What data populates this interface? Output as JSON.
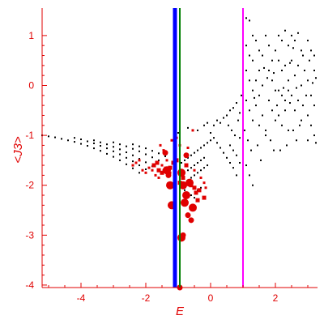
{
  "chart_data": {
    "type": "scatter",
    "title": "",
    "xlabel": "E",
    "ylabel": "<J3>",
    "xlim": [
      -5.2,
      3.3
    ],
    "ylim": [
      -4.05,
      1.55
    ],
    "grid": false,
    "x_ticks": [
      -4,
      -2,
      0,
      2
    ],
    "y_ticks": [
      1,
      0,
      -1,
      -2,
      -3,
      -4
    ],
    "colors": {
      "axes": "#e00000",
      "labels": "#e00000",
      "background_points": "#000000",
      "highlight_points": "#e00000",
      "vline_blue": "#0000ff",
      "vline_green": "#008000",
      "vline_magenta": "#ff00ff"
    },
    "vertical_lines": [
      {
        "x": -1.1,
        "color": "#0000ff",
        "style": "thick"
      },
      {
        "x": -0.95,
        "color": "#008000",
        "style": "thin"
      },
      {
        "x": 1.0,
        "color": "#ff00ff",
        "style": "medium"
      }
    ],
    "series": [
      {
        "color": "#000000",
        "marker": "dot",
        "points": [
          [
            -5.2,
            -1.0
          ],
          [
            -5.0,
            -1.02
          ],
          [
            -4.8,
            -1.04
          ],
          [
            -4.6,
            -1.07
          ],
          [
            -4.4,
            -1.1
          ],
          [
            -4.2,
            -1.13
          ],
          [
            -4.0,
            -1.17
          ],
          [
            -3.8,
            -1.21
          ],
          [
            -3.6,
            -1.26
          ],
          [
            -3.4,
            -1.31
          ],
          [
            -3.2,
            -1.37
          ],
          [
            -3.0,
            -1.43
          ],
          [
            -2.8,
            -1.5
          ],
          [
            -2.6,
            -1.58
          ],
          [
            -2.4,
            -1.66
          ],
          [
            -2.2,
            -1.75
          ],
          [
            -4.2,
            -1.05
          ],
          [
            -4.0,
            -1.08
          ],
          [
            -3.8,
            -1.12
          ],
          [
            -3.6,
            -1.16
          ],
          [
            -3.4,
            -1.21
          ],
          [
            -3.2,
            -1.26
          ],
          [
            -3.0,
            -1.32
          ],
          [
            -2.8,
            -1.38
          ],
          [
            -2.6,
            -1.45
          ],
          [
            -2.4,
            -1.52
          ],
          [
            -2.2,
            -1.6
          ],
          [
            -2.0,
            -1.68
          ],
          [
            -3.6,
            -1.1
          ],
          [
            -3.4,
            -1.14
          ],
          [
            -3.2,
            -1.18
          ],
          [
            -3.0,
            -1.23
          ],
          [
            -2.8,
            -1.28
          ],
          [
            -2.6,
            -1.34
          ],
          [
            -2.4,
            -1.4
          ],
          [
            -2.2,
            -1.47
          ],
          [
            -2.0,
            -1.54
          ],
          [
            -1.8,
            -1.62
          ],
          [
            -3.0,
            -1.14
          ],
          [
            -2.8,
            -1.18
          ],
          [
            -2.6,
            -1.22
          ],
          [
            -2.4,
            -1.27
          ],
          [
            -2.2,
            -1.32
          ],
          [
            -2.0,
            -1.38
          ],
          [
            -1.8,
            -1.44
          ],
          [
            -1.6,
            -1.5
          ],
          [
            -2.4,
            -1.18
          ],
          [
            -2.2,
            -1.22
          ],
          [
            -2.0,
            -1.26
          ],
          [
            -1.8,
            -1.31
          ],
          [
            -1.6,
            -1.36
          ],
          [
            -1.4,
            -1.42
          ],
          [
            -0.9,
            -2.0
          ],
          [
            -0.8,
            -1.95
          ],
          [
            -0.7,
            -1.9
          ],
          [
            -0.6,
            -1.85
          ],
          [
            -0.5,
            -1.8
          ],
          [
            -0.4,
            -1.75
          ],
          [
            -0.3,
            -1.7
          ],
          [
            -0.2,
            -1.65
          ],
          [
            -0.1,
            -1.6
          ],
          [
            -0.9,
            -1.8
          ],
          [
            -0.8,
            -1.75
          ],
          [
            -0.7,
            -1.7
          ],
          [
            -0.6,
            -1.65
          ],
          [
            -0.5,
            -1.6
          ],
          [
            -0.4,
            -1.55
          ],
          [
            -0.3,
            -1.5
          ],
          [
            -0.2,
            -1.45
          ],
          [
            -0.9,
            -1.55
          ],
          [
            -0.8,
            -1.5
          ],
          [
            -0.7,
            -1.45
          ],
          [
            -0.6,
            -1.4
          ],
          [
            -0.5,
            -1.35
          ],
          [
            -0.4,
            -1.3
          ],
          [
            -0.3,
            -1.25
          ],
          [
            -0.2,
            -1.2
          ],
          [
            -0.1,
            -1.15
          ],
          [
            0.0,
            -1.1
          ],
          [
            -0.8,
            -2.1
          ],
          [
            -0.7,
            -2.15
          ],
          [
            -0.6,
            -2.2
          ],
          [
            -0.5,
            -2.25
          ],
          [
            -0.4,
            -2.1
          ],
          [
            -0.3,
            -2.05
          ],
          [
            -1.1,
            -1.0
          ],
          [
            -1.0,
            -0.95
          ],
          [
            -0.7,
            -0.85
          ],
          [
            -0.4,
            -0.9
          ],
          [
            -0.2,
            -0.8
          ],
          [
            -0.1,
            -0.75
          ],
          [
            0.1,
            -0.8
          ],
          [
            0.2,
            -0.7
          ],
          [
            0.3,
            -0.75
          ],
          [
            0.4,
            -0.65
          ],
          [
            0.0,
            -0.95
          ],
          [
            0.1,
            -1.05
          ],
          [
            0.2,
            -1.15
          ],
          [
            0.3,
            -1.25
          ],
          [
            0.4,
            -1.35
          ],
          [
            0.5,
            -1.45
          ],
          [
            0.6,
            -1.55
          ],
          [
            0.7,
            -1.65
          ],
          [
            0.8,
            -1.8
          ],
          [
            0.6,
            -1.2
          ],
          [
            0.7,
            -1.3
          ],
          [
            0.8,
            -1.4
          ],
          [
            0.9,
            -1.55
          ],
          [
            0.5,
            -0.6
          ],
          [
            0.6,
            -0.5
          ],
          [
            0.7,
            -0.45
          ],
          [
            0.8,
            -0.35
          ],
          [
            0.9,
            -0.55
          ],
          [
            0.55,
            -0.8
          ],
          [
            0.65,
            -0.9
          ],
          [
            0.75,
            -1.0
          ],
          [
            0.85,
            -0.7
          ],
          [
            0.95,
            -0.2
          ],
          [
            0.9,
            -1.05
          ],
          [
            1.0,
            1.2
          ],
          [
            1.1,
            1.35
          ],
          [
            1.2,
            1.3
          ],
          [
            1.3,
            1.0
          ],
          [
            1.1,
            0.8
          ],
          [
            1.2,
            0.6
          ],
          [
            1.3,
            0.5
          ],
          [
            1.1,
            0.3
          ],
          [
            1.2,
            0.1
          ],
          [
            1.3,
            -0.1
          ],
          [
            1.1,
            -0.3
          ],
          [
            1.2,
            -0.5
          ],
          [
            1.3,
            -0.7
          ],
          [
            1.05,
            -0.9
          ],
          [
            1.15,
            -1.1
          ],
          [
            1.25,
            -1.3
          ],
          [
            1.1,
            -1.6
          ],
          [
            1.2,
            -1.8
          ],
          [
            1.3,
            -2.0
          ],
          [
            1.4,
            0.9
          ],
          [
            1.5,
            0.7
          ],
          [
            1.6,
            0.6
          ],
          [
            1.5,
            0.3
          ],
          [
            1.4,
            0.1
          ],
          [
            1.6,
            0.0
          ],
          [
            1.5,
            -0.2
          ],
          [
            1.4,
            -0.4
          ],
          [
            1.6,
            -0.6
          ],
          [
            1.5,
            -0.8
          ],
          [
            1.7,
            -1.0
          ],
          [
            1.45,
            -1.2
          ],
          [
            1.55,
            -1.5
          ],
          [
            1.35,
            -0.25
          ],
          [
            1.65,
            0.35
          ],
          [
            1.7,
            1.0
          ],
          [
            1.8,
            0.8
          ],
          [
            1.9,
            0.5
          ],
          [
            2.0,
            0.7
          ],
          [
            1.8,
            0.3
          ],
          [
            1.9,
            0.1
          ],
          [
            2.0,
            -0.1
          ],
          [
            1.8,
            -0.3
          ],
          [
            1.9,
            -0.5
          ],
          [
            2.0,
            -0.7
          ],
          [
            1.7,
            -0.9
          ],
          [
            1.85,
            -1.1
          ],
          [
            1.95,
            -1.3
          ],
          [
            2.05,
            -0.4
          ],
          [
            1.75,
            0.15
          ],
          [
            1.95,
            0.25
          ],
          [
            2.1,
            1.0
          ],
          [
            2.2,
            0.9
          ],
          [
            2.3,
            1.1
          ],
          [
            2.4,
            0.8
          ],
          [
            2.1,
            0.5
          ],
          [
            2.2,
            0.3
          ],
          [
            2.3,
            0.4
          ],
          [
            2.4,
            0.1
          ],
          [
            2.1,
            -0.1
          ],
          [
            2.2,
            -0.2
          ],
          [
            2.3,
            -0.3
          ],
          [
            2.4,
            -0.1
          ],
          [
            2.1,
            -0.6
          ],
          [
            2.2,
            -0.8
          ],
          [
            2.3,
            -0.5
          ],
          [
            2.4,
            -0.9
          ],
          [
            2.15,
            -1.3
          ],
          [
            2.35,
            -1.2
          ],
          [
            2.25,
            -0.05
          ],
          [
            2.45,
            -0.35
          ],
          [
            2.45,
            0.45
          ],
          [
            2.5,
            1.0
          ],
          [
            2.6,
            0.9
          ],
          [
            2.7,
            1.05
          ],
          [
            2.8,
            0.7
          ],
          [
            2.5,
            0.5
          ],
          [
            2.6,
            0.2
          ],
          [
            2.7,
            0.4
          ],
          [
            2.8,
            0.0
          ],
          [
            2.5,
            -0.2
          ],
          [
            2.6,
            -0.5
          ],
          [
            2.7,
            -0.3
          ],
          [
            2.8,
            -0.7
          ],
          [
            2.55,
            -0.9
          ],
          [
            2.65,
            -1.1
          ],
          [
            2.75,
            -0.8
          ],
          [
            2.85,
            -0.4
          ],
          [
            2.9,
            0.3
          ],
          [
            2.95,
            -0.2
          ],
          [
            2.85,
            0.6
          ],
          [
            2.55,
            0.75
          ],
          [
            2.65,
            -0.05
          ],
          [
            3.0,
            0.9
          ],
          [
            3.1,
            0.7
          ],
          [
            3.2,
            0.3
          ],
          [
            3.0,
            0.1
          ],
          [
            3.1,
            -0.2
          ],
          [
            3.2,
            -0.4
          ],
          [
            3.0,
            -0.6
          ],
          [
            3.1,
            -0.8
          ],
          [
            3.2,
            -1.0
          ],
          [
            3.25,
            -1.15
          ],
          [
            3.05,
            0.5
          ],
          [
            3.15,
            0.05
          ],
          [
            3.25,
            0.15
          ],
          [
            3.0,
            -1.1
          ],
          [
            3.2,
            0.6
          ]
        ]
      },
      {
        "color": "#e00000",
        "marker": "square",
        "points": [
          [
            -2.4,
            -1.6,
            1
          ],
          [
            -2.3,
            -1.55,
            1
          ],
          [
            -2.2,
            -1.5,
            1
          ],
          [
            -2.1,
            -1.7,
            1
          ],
          [
            -2.0,
            -1.75,
            1
          ],
          [
            -1.9,
            -1.65,
            1
          ],
          [
            -1.8,
            -1.7,
            1
          ],
          [
            -1.7,
            -1.8,
            1
          ],
          [
            -1.6,
            -1.85,
            1
          ],
          [
            -1.55,
            -1.2,
            1
          ],
          [
            -1.45,
            -1.3,
            1
          ],
          [
            -1.35,
            -1.5,
            1
          ],
          [
            -1.5,
            -1.6,
            1
          ],
          [
            -1.4,
            -1.65,
            1
          ],
          [
            -1.3,
            -1.7,
            1
          ],
          [
            -1.25,
            -1.75,
            1
          ],
          [
            -1.2,
            -1.1,
            1
          ],
          [
            -1.05,
            -1.05,
            1
          ],
          [
            -0.95,
            -1.2,
            1
          ],
          [
            -0.7,
            -1.25,
            1
          ],
          [
            -0.55,
            -0.9,
            1
          ],
          [
            -0.5,
            -1.7,
            1
          ],
          [
            -0.3,
            -1.85,
            1
          ],
          [
            -0.2,
            -1.95,
            1
          ],
          [
            -0.15,
            -2.05,
            1
          ],
          [
            -1.75,
            -1.6,
            2
          ],
          [
            -1.65,
            -1.55,
            2
          ],
          [
            -1.6,
            -1.7,
            2
          ],
          [
            -1.5,
            -1.75,
            2
          ],
          [
            -1.4,
            -1.7,
            3
          ],
          [
            -1.3,
            -1.8,
            3
          ],
          [
            -1.25,
            -1.65,
            2
          ],
          [
            -1.15,
            -1.55,
            2
          ],
          [
            -1.05,
            -1.5,
            2
          ],
          [
            -0.95,
            -1.95,
            2
          ],
          [
            -0.85,
            -1.85,
            2
          ],
          [
            -0.75,
            -1.6,
            2
          ],
          [
            -0.6,
            -2.0,
            2
          ],
          [
            -0.5,
            -2.05,
            2
          ],
          [
            -0.45,
            -2.15,
            2
          ],
          [
            -0.35,
            -2.1,
            2
          ],
          [
            -0.4,
            -2.3,
            2
          ],
          [
            -0.2,
            -2.25,
            2
          ],
          [
            -1.35,
            -1.7,
            4
          ],
          [
            -1.25,
            -2.0,
            4
          ],
          [
            -1.2,
            -2.4,
            4
          ],
          [
            -0.9,
            -1.75,
            4
          ],
          [
            -0.85,
            -2.0,
            4
          ],
          [
            -0.8,
            -2.35,
            4
          ],
          [
            -0.75,
            -2.2,
            4
          ],
          [
            -0.65,
            -1.95,
            4
          ],
          [
            -0.55,
            -2.45,
            4
          ],
          [
            -0.9,
            -3.05,
            4
          ],
          [
            -1.4,
            -1.35,
            3
          ],
          [
            -0.75,
            -1.4,
            3
          ],
          [
            -0.95,
            -4.05,
            3
          ],
          [
            -0.7,
            -2.6,
            3
          ],
          [
            -0.6,
            -2.7,
            3
          ],
          [
            -0.85,
            -3.0,
            3
          ]
        ]
      }
    ]
  }
}
